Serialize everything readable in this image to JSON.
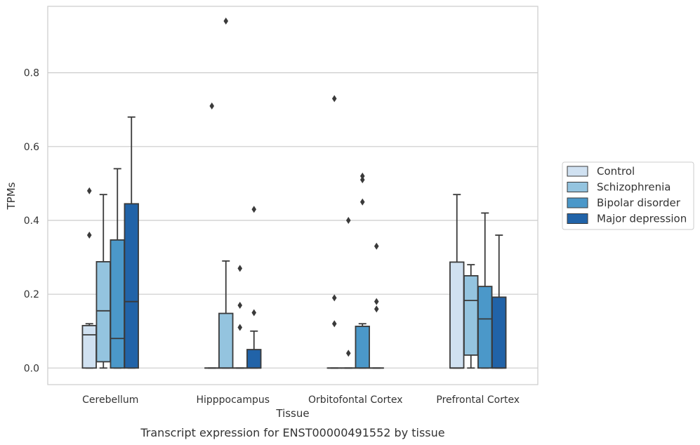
{
  "caption": "Transcript expression for ENST00000491552 by tissue",
  "chart_data": {
    "type": "box",
    "title": "",
    "xlabel": "Tissue",
    "ylabel": "TPMs",
    "ylim": [
      -0.045,
      0.98
    ],
    "yticks": [
      0.0,
      0.2,
      0.4,
      0.6,
      0.8
    ],
    "ytick_labels": [
      "0.0",
      "0.2",
      "0.4",
      "0.6",
      "0.8"
    ],
    "grid": "horizontal",
    "legend_position": "right",
    "categories": [
      "Cerebellum",
      "Hipppocampus",
      "Orbitofontal Cortex",
      "Prefrontal Cortex"
    ],
    "series": [
      {
        "name": "Control",
        "color": "#d0e1f1",
        "boxes": [
          {
            "q1": 0.0,
            "median": 0.09,
            "q3": 0.115,
            "whisker_low": 0.0,
            "whisker_high": 0.12,
            "outliers": [
              0.36,
              0.48
            ]
          },
          {
            "q1": 0.0,
            "median": 0.0,
            "q3": 0.0,
            "whisker_low": 0.0,
            "whisker_high": 0.0,
            "outliers": [
              0.71
            ]
          },
          {
            "q1": 0.0,
            "median": 0.0,
            "q3": 0.0,
            "whisker_low": 0.0,
            "whisker_high": 0.0,
            "outliers": [
              0.12,
              0.19,
              0.73
            ]
          },
          {
            "q1": 0.0,
            "median": 0.0,
            "q3": 0.287,
            "whisker_low": 0.0,
            "whisker_high": 0.47,
            "outliers": []
          }
        ]
      },
      {
        "name": "Schizophrenia",
        "color": "#94c4df",
        "boxes": [
          {
            "q1": 0.017,
            "median": 0.155,
            "q3": 0.288,
            "whisker_low": 0.0,
            "whisker_high": 0.47,
            "outliers": []
          },
          {
            "q1": 0.0,
            "median": 0.0,
            "q3": 0.148,
            "whisker_low": 0.0,
            "whisker_high": 0.29,
            "outliers": [
              0.94
            ]
          },
          {
            "q1": 0.0,
            "median": 0.0,
            "q3": 0.0,
            "whisker_low": 0.0,
            "whisker_high": 0.0,
            "outliers": [
              0.04,
              0.4
            ]
          },
          {
            "q1": 0.035,
            "median": 0.183,
            "q3": 0.25,
            "whisker_low": 0.0,
            "whisker_high": 0.28,
            "outliers": []
          }
        ]
      },
      {
        "name": "Bipolar disorder",
        "color": "#4b98c9",
        "boxes": [
          {
            "q1": 0.0,
            "median": 0.08,
            "q3": 0.347,
            "whisker_low": 0.0,
            "whisker_high": 0.54,
            "outliers": []
          },
          {
            "q1": 0.0,
            "median": 0.0,
            "q3": 0.0,
            "whisker_low": 0.0,
            "whisker_high": 0.0,
            "outliers": [
              0.11,
              0.17,
              0.27
            ]
          },
          {
            "q1": 0.0,
            "median": 0.0,
            "q3": 0.113,
            "whisker_low": 0.0,
            "whisker_high": 0.12,
            "outliers": [
              0.45,
              0.51,
              0.52
            ]
          },
          {
            "q1": 0.0,
            "median": 0.133,
            "q3": 0.221,
            "whisker_low": 0.0,
            "whisker_high": 0.42,
            "outliers": []
          }
        ]
      },
      {
        "name": "Major depression",
        "color": "#2163a8",
        "boxes": [
          {
            "q1": 0.0,
            "median": 0.18,
            "q3": 0.445,
            "whisker_low": 0.0,
            "whisker_high": 0.68,
            "outliers": []
          },
          {
            "q1": 0.0,
            "median": 0.0,
            "q3": 0.05,
            "whisker_low": 0.0,
            "whisker_high": 0.1,
            "outliers": [
              0.15,
              0.43
            ]
          },
          {
            "q1": 0.0,
            "median": 0.0,
            "q3": 0.0,
            "whisker_low": 0.0,
            "whisker_high": 0.0,
            "outliers": [
              0.16,
              0.18,
              0.33
            ]
          },
          {
            "q1": 0.0,
            "median": 0.0,
            "q3": 0.192,
            "whisker_low": 0.0,
            "whisker_high": 0.36,
            "outliers": []
          }
        ]
      }
    ]
  }
}
